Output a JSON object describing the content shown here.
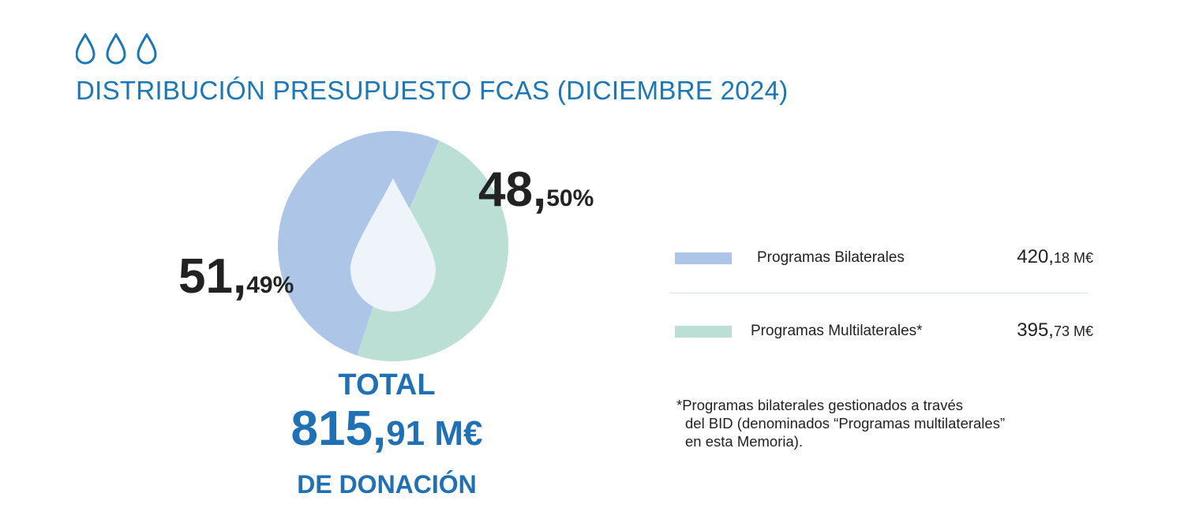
{
  "header": {
    "title": "DISTRIBUCIÓN PRESUPUESTO FCAS (DICIEMBRE 2024)",
    "icons": [
      "water-drop-icon",
      "water-drop-icon",
      "water-drop-icon"
    ]
  },
  "colors": {
    "accent": "#1a77b8",
    "bilateral": "#adc5e6",
    "multilateral": "#bbdfd5",
    "center_drop": "#eef4fa"
  },
  "chart_data": {
    "type": "pie",
    "categories": [
      "Programas Bilaterales",
      "Programas Multilaterales*"
    ],
    "values": [
      51.49,
      48.5
    ],
    "labels": [
      {
        "main": "51,",
        "decimal": "49%"
      },
      {
        "main": "48,",
        "decimal": "50%"
      }
    ],
    "title": "DISTRIBUCIÓN PRESUPUESTO FCAS (DICIEMBRE 2024)"
  },
  "total": {
    "label": "TOTAL",
    "value_main": "815,",
    "value_decimal": "91 M€",
    "sub": "DE DONACIÓN"
  },
  "legend": [
    {
      "label": "Programas Bilaterales",
      "value_main": "420,",
      "value_decimal": "18 M€"
    },
    {
      "label": "Programas Multilaterales*",
      "value_main": "395,",
      "value_decimal": "73 M€"
    }
  ],
  "note": {
    "lines": [
      "*Programas bilaterales gestionados a través",
      "del BID (denominados “Programas multilaterales”",
      "en esta Memoria)."
    ]
  }
}
